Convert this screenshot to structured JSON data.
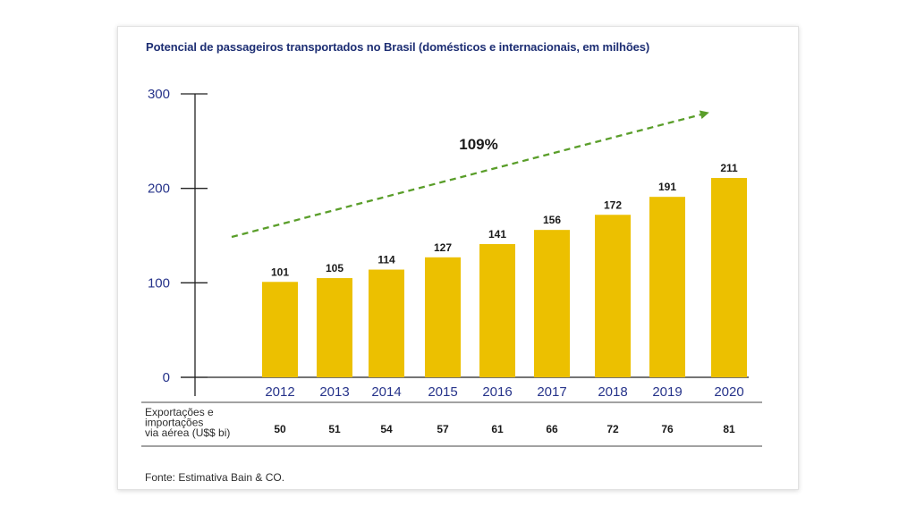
{
  "title": "Potencial de passageiros transportados no Brasil (domésticos e internacionais, em milhões)",
  "source": "Fonte: Estimativa Bain & CO.",
  "table_row_label": [
    "Exportações e",
    "importações",
    "via aérea (U$$ bi)"
  ],
  "growth_label": "109%",
  "colors": {
    "bar": "#ecc000",
    "title": "#1d2e73",
    "axis_text": "#26338a",
    "arrow": "#5a9e2a"
  },
  "chart_data": {
    "type": "bar",
    "title": "Potencial de passageiros transportados no Brasil (domésticos e internacionais, em milhões)",
    "categories": [
      "2012",
      "2013",
      "2014",
      "2015",
      "2016",
      "2017",
      "2018",
      "2019",
      "2020"
    ],
    "values": [
      101,
      105,
      114,
      127,
      141,
      156,
      172,
      191,
      211
    ],
    "ylim": [
      0,
      300
    ],
    "yticks": [
      "0",
      "100",
      "200",
      "300"
    ],
    "grid": false,
    "legend": "none",
    "annotation": "109%",
    "table_values": [
      "50",
      "51",
      "54",
      "57",
      "61",
      "66",
      "72",
      "76",
      "81"
    ]
  }
}
